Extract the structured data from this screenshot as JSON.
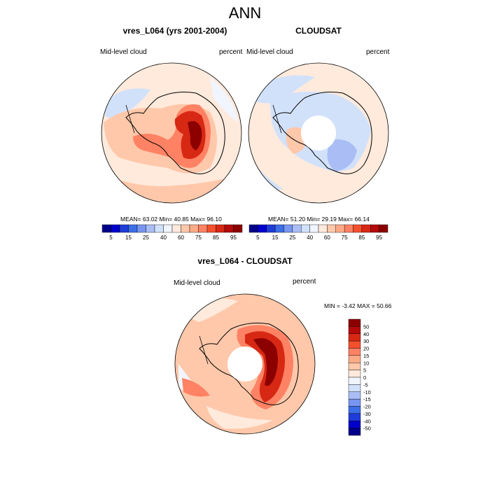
{
  "figure": {
    "title": "ANN"
  },
  "panels": [
    {
      "title": "vres_L064 (yrs 2001-2004)",
      "var_label": "Mid-level cloud",
      "units": "percent",
      "stats": "MEAN=  63.02  Min=  40.85  Max=  96.10"
    },
    {
      "title": "CLOUDSAT",
      "var_label": "Mid-level cloud",
      "units": "percent",
      "stats": "MEAN=  51.20  Min=  29.19  Max=  66.14"
    },
    {
      "title": "vres_L064 - CLOUDSAT",
      "var_label": "Mid-level cloud",
      "units": "percent",
      "stats": "MIN =  -3.42 MAX =  50.66"
    }
  ],
  "chart_data": [
    {
      "type": "heatmap",
      "projection": "south polar stereographic",
      "title": "vres_L064 (yrs 2001-2004)",
      "variable": "Mid-level cloud",
      "units": "percent",
      "mean": 63.02,
      "min": 40.85,
      "max": 96.1,
      "colorbar_ticks": [
        "5",
        "15",
        "25",
        "40",
        "60",
        "75",
        "85",
        "95"
      ],
      "colorbar_colors": [
        "#00008B",
        "#0000CD",
        "#1E3CD8",
        "#3C6EE6",
        "#7896F0",
        "#AABEF5",
        "#D2E1FA",
        "#F0F5FF",
        "#FFEADC",
        "#FFC8AA",
        "#FFAA87",
        "#FF8264",
        "#F5502D",
        "#D72814",
        "#B40A0A",
        "#8C0000"
      ],
      "location": "left"
    },
    {
      "type": "heatmap",
      "projection": "south polar stereographic",
      "title": "CLOUDSAT",
      "variable": "Mid-level cloud",
      "units": "percent",
      "mean": 51.2,
      "min": 29.19,
      "max": 66.14,
      "colorbar_ticks": [
        "5",
        "15",
        "25",
        "40",
        "60",
        "75",
        "85",
        "95"
      ],
      "colorbar_colors": [
        "#00008B",
        "#0000CD",
        "#1E3CD8",
        "#3C6EE6",
        "#7896F0",
        "#AABEF5",
        "#D2E1FA",
        "#F0F5FF",
        "#FFEADC",
        "#FFC8AA",
        "#FFAA87",
        "#FF8264",
        "#F5502D",
        "#D72814",
        "#B40A0A",
        "#8C0000"
      ],
      "location": "right"
    },
    {
      "type": "heatmap",
      "projection": "south polar stereographic",
      "title": "vres_L064 - CLOUDSAT",
      "variable": "Mid-level cloud",
      "units": "percent",
      "min": -3.42,
      "max": 50.66,
      "colorbar_ticks": [
        "50",
        "40",
        "30",
        "20",
        "15",
        "10",
        "5",
        "0",
        "-5",
        "-10",
        "-15",
        "-20",
        "-30",
        "-40",
        "-50"
      ],
      "colorbar_colors": [
        "#8C0000",
        "#B40A0A",
        "#D72814",
        "#F5502D",
        "#FF8264",
        "#FFAA87",
        "#FFC8AA",
        "#FFEADC",
        "#F0F5FF",
        "#D2E1FA",
        "#AABEF5",
        "#7896F0",
        "#3C6EE6",
        "#1E3CD8",
        "#0000CD",
        "#00008B"
      ],
      "location": "bottom"
    }
  ]
}
